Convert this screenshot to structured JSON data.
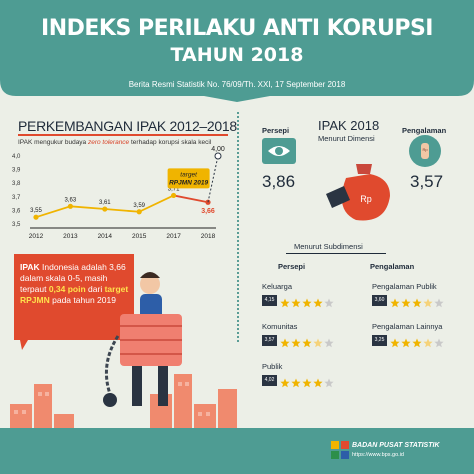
{
  "header": {
    "title_line1": "INDEKS PERILAKU ANTI KORUPSI",
    "title_line2": "TAHUN 2018",
    "subtitle": "Berita Resmi Statistik No. 76/09/Th. XXI, 17 September 2018"
  },
  "colors": {
    "teal": "#4e9c93",
    "teal_dark": "#3e8880",
    "accent_red": "#e04a2e",
    "gold": "#f0b400",
    "navy": "#1f2b3a",
    "bg": "#ecefe7"
  },
  "chart_data": {
    "type": "line",
    "title": "PERKEMBANGAN IPAK 2012–2018",
    "note_prefix": "IPAK mengukur budaya ",
    "note_emph": "zero tolerance",
    "note_suffix": " terhadap korupsi skala kecil",
    "categories": [
      "2012",
      "2013",
      "2014",
      "2015",
      "2017",
      "2018"
    ],
    "values": [
      3.55,
      3.63,
      3.61,
      3.59,
      3.71,
      3.66
    ],
    "value_labels": [
      "3,55",
      "3,63",
      "3,61",
      "3,59",
      "3,71",
      "3,66"
    ],
    "target": {
      "value": 4.0,
      "label": "4,00",
      "caption1": "target",
      "caption2": "RPJMN 2019"
    },
    "y_ticks": [
      "3,5",
      "3,6",
      "3,7",
      "3,8",
      "3,9",
      "4,0"
    ],
    "ylim": [
      3.5,
      4.0
    ]
  },
  "ipak_note": {
    "t1": "IPAK",
    "t2": " Indonesia adalah 3,66 dalam skala 0-5, masih terpaut ",
    "t3": "0,34 poin",
    "t4": " dari ",
    "t5": "target RPJMN",
    "t6": " pada tahun 2019"
  },
  "ipak2018": {
    "title": "IPAK 2018",
    "subtitle": "Menurut Dimensi",
    "persepsi_label": "Persepi",
    "persepsi_value": "3,86",
    "pengalaman_label": "Pengalaman",
    "pengalaman_value": "3,57",
    "bag_label": "Rp",
    "hand_label": "Rp"
  },
  "subdimensi": {
    "title": "Menurut Subdimensi",
    "persepsi_head": "Persepi",
    "pengalaman_head": "Pengalaman",
    "persepsi_items": [
      {
        "label": "Keluarga",
        "value": "4,15",
        "rating": 4.15
      },
      {
        "label": "Komunitas",
        "value": "3,57",
        "rating": 3.57
      },
      {
        "label": "Publik",
        "value": "4,02",
        "rating": 4.02
      }
    ],
    "pengalaman_items": [
      {
        "label": "Pengalaman Publik",
        "value": "3,60",
        "rating": 3.6
      },
      {
        "label": "Pengalaman Lainnya",
        "value": "3,25",
        "rating": 3.25
      }
    ]
  },
  "footer": {
    "org": "BADAN PUSAT STATISTIK",
    "url": "https://www.bps.go.id"
  }
}
